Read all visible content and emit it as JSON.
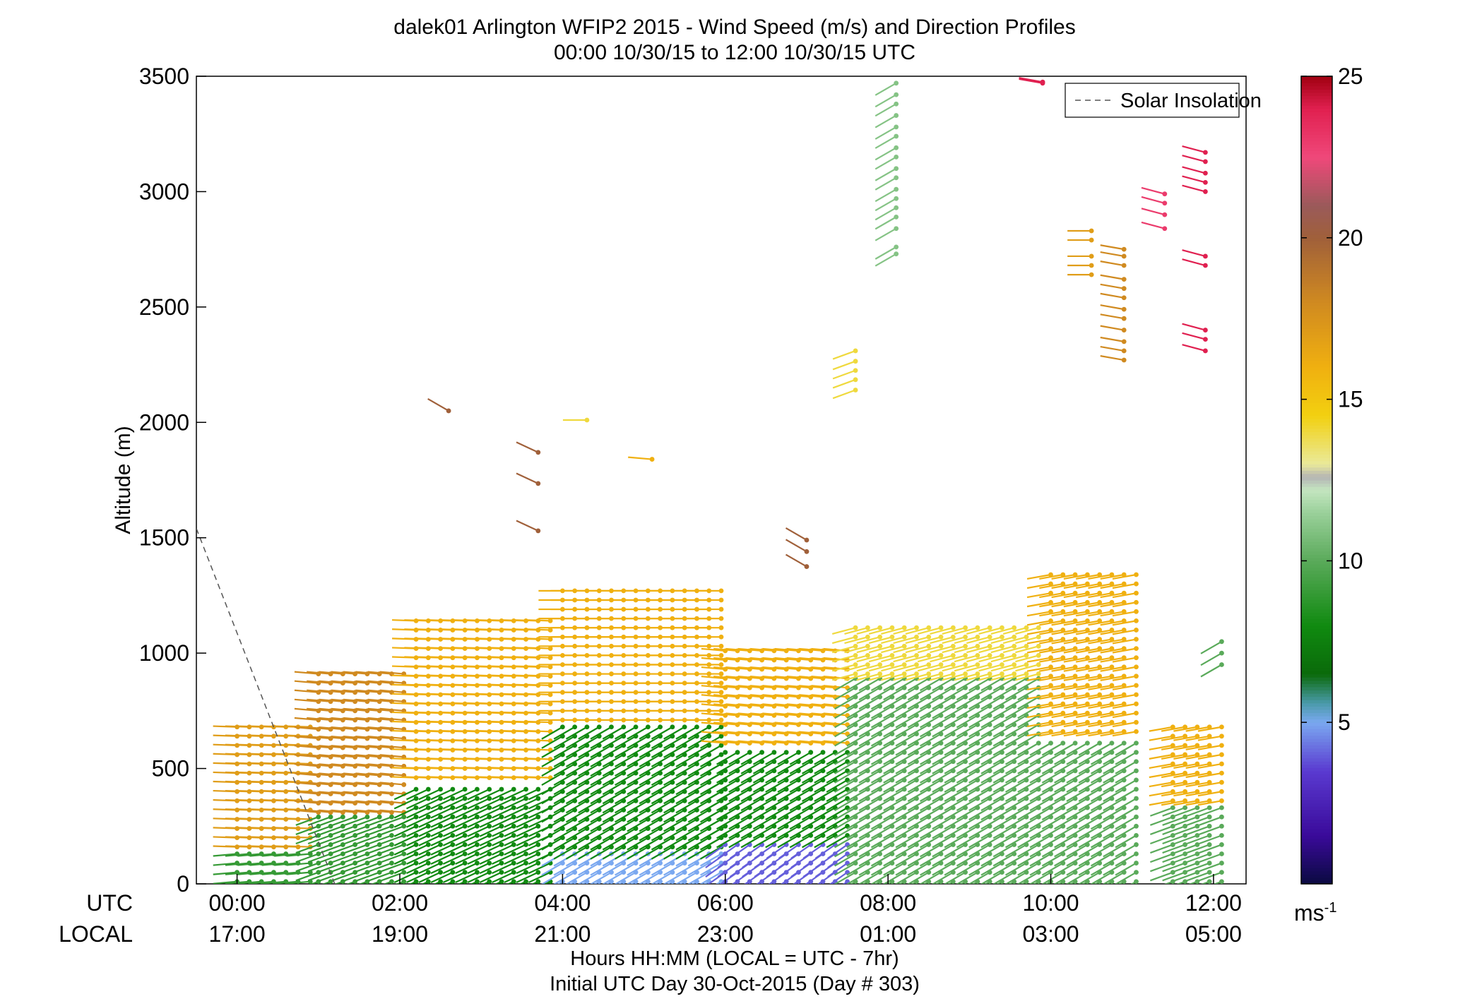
{
  "chart_data": {
    "type": "scatter",
    "title": "dalek01 Arlington WFIP2 2015 - Wind Speed (m/s) and Direction Profiles",
    "subtitle": "00:00 10/30/15 to 12:00 10/30/15  UTC",
    "ylabel": "Altitude (m)",
    "xlabel_line1": "Hours HH:MM  (LOCAL = UTC - 7hr)",
    "xlabel_line2": "Initial UTC Day 30-Oct-2015 (Day # 303)",
    "x_row_labels": [
      "UTC",
      "LOCAL"
    ],
    "xlim_hours": [
      -0.5,
      12.4
    ],
    "ylim": [
      0,
      3500
    ],
    "yticks": [
      0,
      500,
      1000,
      1500,
      2000,
      2500,
      3000,
      3500
    ],
    "xticks_utc": [
      "00:00",
      "02:00",
      "04:00",
      "06:00",
      "08:00",
      "10:00",
      "12:00"
    ],
    "xticks_local": [
      "17:00",
      "19:00",
      "21:00",
      "23:00",
      "01:00",
      "03:00",
      "05:00"
    ],
    "xticks_hours": [
      0,
      2,
      4,
      6,
      8,
      10,
      12
    ],
    "legend": {
      "entries": [
        "Solar Insolation"
      ],
      "position": "top-right"
    },
    "colorbar": {
      "ticks": [
        5,
        10,
        15,
        20,
        25
      ],
      "range": [
        0,
        25
      ],
      "unit_label": "ms",
      "unit_exp": "-1"
    },
    "solar_insolation": {
      "x": [
        -0.5,
        1.2
      ],
      "y": [
        1540,
        0
      ]
    },
    "wind_layers": [
      {
        "t": [
          0.0,
          1.0
        ],
        "z": [
          0,
          150
        ],
        "speed": 9,
        "dir": 265
      },
      {
        "t": [
          0.0,
          1.0
        ],
        "z": [
          150,
          700
        ],
        "speed": 17,
        "dir": 272
      },
      {
        "t": [
          1.0,
          2.2
        ],
        "z": [
          0,
          300
        ],
        "speed": 9,
        "dir": 250
      },
      {
        "t": [
          1.0,
          2.2
        ],
        "z": [
          300,
          950
        ],
        "speed": 18,
        "dir": 275
      },
      {
        "t": [
          2.2,
          4.0
        ],
        "z": [
          0,
          450
        ],
        "speed": 8,
        "dir": 245
      },
      {
        "t": [
          2.2,
          4.0
        ],
        "z": [
          450,
          1150
        ],
        "speed": 16,
        "dir": 272
      },
      {
        "t": [
          4.0,
          6.0
        ],
        "z": [
          0,
          150
        ],
        "speed": 5,
        "dir": 240
      },
      {
        "t": [
          4.0,
          6.0
        ],
        "z": [
          150,
          700
        ],
        "speed": 8,
        "dir": 240
      },
      {
        "t": [
          4.0,
          6.0
        ],
        "z": [
          700,
          1300
        ],
        "speed": 16,
        "dir": 270
      },
      {
        "t": [
          6.0,
          7.6
        ],
        "z": [
          0,
          200
        ],
        "speed": 4,
        "dir": 235
      },
      {
        "t": [
          6.0,
          7.6
        ],
        "z": [
          200,
          600
        ],
        "speed": 8,
        "dir": 240
      },
      {
        "t": [
          6.0,
          7.6
        ],
        "z": [
          600,
          1050
        ],
        "speed": 16,
        "dir": 275
      },
      {
        "t": [
          7.6,
          10.0
        ],
        "z": [
          0,
          900
        ],
        "speed": 10,
        "dir": 240
      },
      {
        "t": [
          7.6,
          10.0
        ],
        "z": [
          900,
          1150
        ],
        "speed": 14,
        "dir": 255
      },
      {
        "t": [
          10.0,
          11.2
        ],
        "z": [
          0,
          650
        ],
        "speed": 10,
        "dir": 240
      },
      {
        "t": [
          10.0,
          11.2
        ],
        "z": [
          650,
          1350
        ],
        "speed": 16,
        "dir": 260
      },
      {
        "t": [
          11.5,
          12.2
        ],
        "z": [
          0,
          350
        ],
        "speed": 10,
        "dir": 250
      },
      {
        "t": [
          11.5,
          12.2
        ],
        "z": [
          350,
          700
        ],
        "speed": 16,
        "dir": 260
      }
    ],
    "wind_extras": [
      {
        "t": 2.6,
        "z": 2050,
        "speed": 20,
        "dir": 300
      },
      {
        "t": 3.7,
        "z": [
          1530,
          1870,
          1735
        ],
        "speed": 20,
        "dir": 295
      },
      {
        "t": 4.3,
        "z": 2010,
        "speed": 14,
        "dir": 270
      },
      {
        "t": 5.1,
        "z": 1840,
        "speed": 16,
        "dir": 275
      },
      {
        "t": 7.0,
        "z": [
          1375,
          1440,
          1490
        ],
        "speed": 20,
        "dir": 300
      },
      {
        "t": 7.6,
        "z": [
          2140,
          2185,
          2225,
          2265,
          2310
        ],
        "speed": 14,
        "dir": 250
      },
      {
        "t": 8.1,
        "z": [
          2730,
          2760,
          2840,
          2890,
          2930,
          2970,
          3010,
          3060,
          3100,
          3150,
          3190,
          3240,
          3280,
          3330,
          3380,
          3420,
          3470
        ],
        "speed": 11,
        "dir": 240
      },
      {
        "t": 10.5,
        "z": [
          2640,
          2680,
          2720,
          2790,
          2830
        ],
        "speed": 17,
        "dir": 270
      },
      {
        "t": 10.9,
        "z": [
          2270,
          2310,
          2350,
          2400,
          2450,
          2490,
          2540,
          2580,
          2620,
          2680,
          2720,
          2750
        ],
        "speed": 18,
        "dir": 280
      },
      {
        "t": 11.4,
        "z": [
          2840,
          2900,
          2950,
          2990
        ],
        "speed": 23,
        "dir": 285
      },
      {
        "t": 11.9,
        "z": [
          2310,
          2360,
          2400,
          2680,
          2720,
          3000,
          3040,
          3080,
          3130,
          3170
        ],
        "speed": 24,
        "dir": 285
      },
      {
        "t": 9.9,
        "z": [
          3470,
          3475
        ],
        "speed": 24,
        "dir": 280
      },
      {
        "t": 12.1,
        "z": [
          950,
          1000,
          1050
        ],
        "speed": 10,
        "dir": 240
      }
    ]
  }
}
